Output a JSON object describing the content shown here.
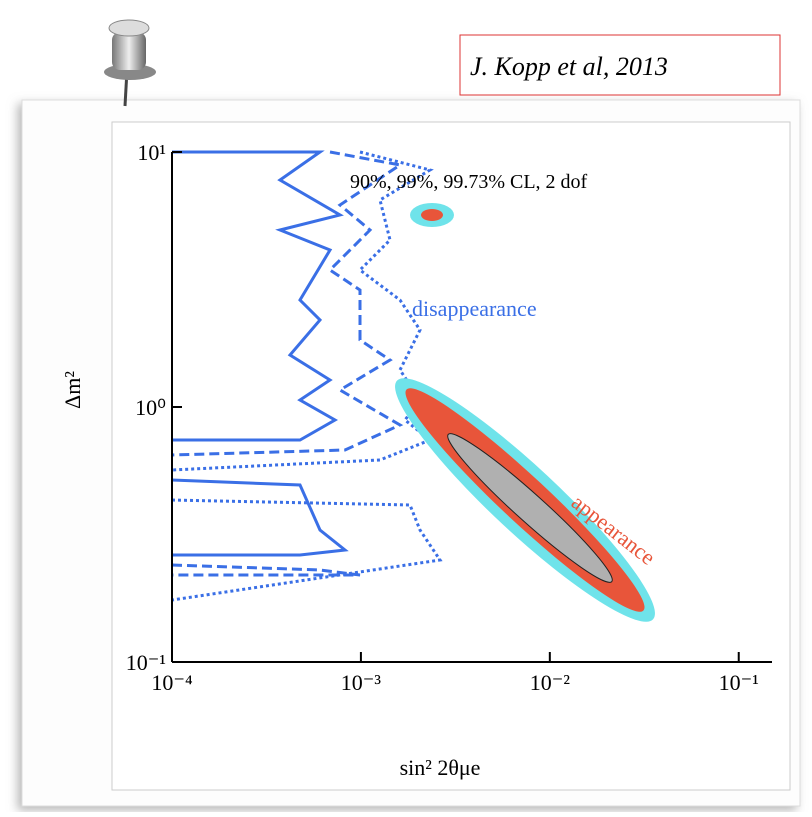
{
  "citation": "J. Kopp et al, 2013",
  "chart_data": {
    "type": "contour",
    "xlabel": "sin² 2θμe",
    "ylabel": "Δm²",
    "xscale": "log",
    "yscale": "log",
    "xlim": [
      0.0001,
      0.15
    ],
    "ylim": [
      0.1,
      10
    ],
    "xticks": [
      {
        "value": 0.0001,
        "label": "10⁻⁴"
      },
      {
        "value": 0.001,
        "label": "10⁻³"
      },
      {
        "value": 0.01,
        "label": "10⁻²"
      },
      {
        "value": 0.1,
        "label": "10⁻¹"
      }
    ],
    "yticks": [
      {
        "value": 0.1,
        "label": "10⁻¹"
      },
      {
        "value": 1,
        "label": "10⁰"
      },
      {
        "value": 10,
        "label": "10¹"
      }
    ],
    "annotations": [
      "90%, 99%, 99.73% CL, 2 dof",
      "disappearance",
      "appearance"
    ],
    "colors": {
      "disappearance": "#3a6fe6",
      "appearance": "#e8553a",
      "outer": "#6fe3ea",
      "inner": "#b0b0b0"
    }
  }
}
